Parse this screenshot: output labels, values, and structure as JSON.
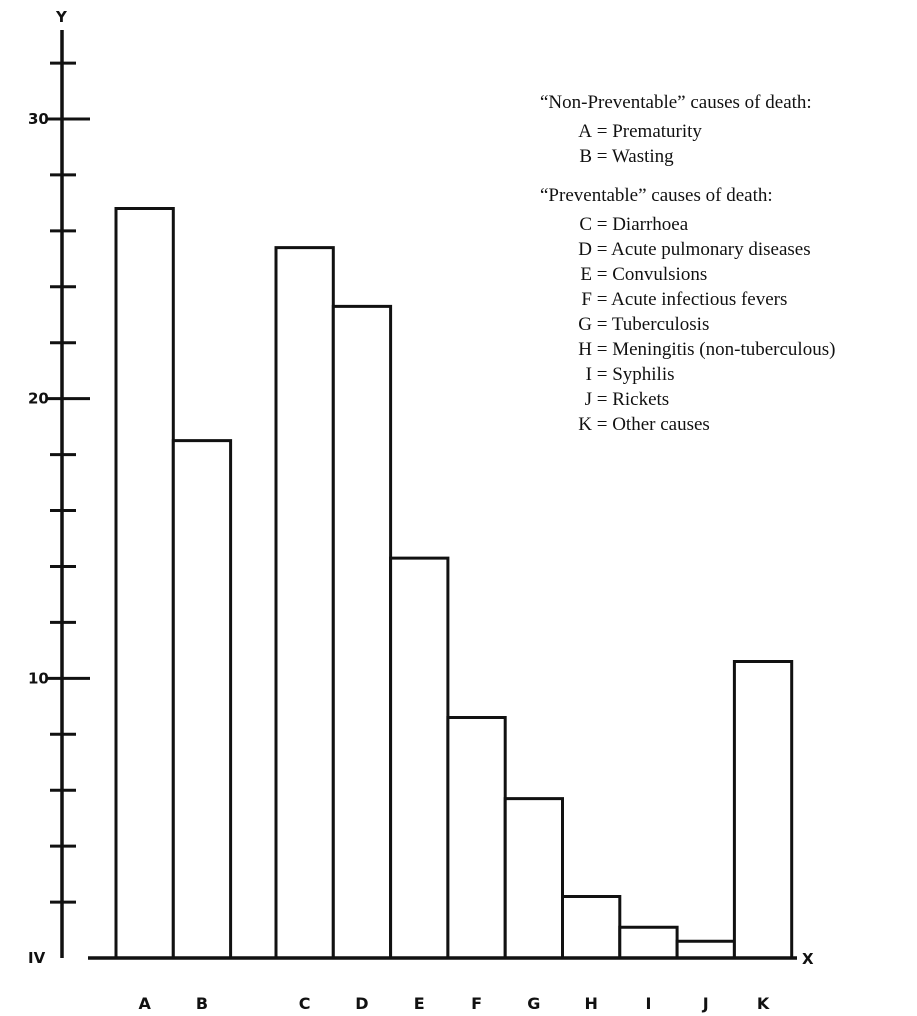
{
  "chart_data": {
    "type": "bar",
    "y_axis_letter": "Y",
    "x_axis_letter": "X",
    "origin_label": "IV",
    "ylim": [
      0,
      30
    ],
    "yticks_labeled": [
      10,
      20,
      30
    ],
    "categories": [
      "A",
      "B",
      "C",
      "D",
      "E",
      "F",
      "G",
      "H",
      "I",
      "J",
      "K"
    ],
    "values": [
      26.8,
      18.5,
      25.4,
      23.3,
      14.3,
      8.6,
      5.7,
      2.2,
      1.1,
      0.6,
      10.6
    ],
    "groups": [
      {
        "title": "“Non-Preventable” causes of death:",
        "categories": [
          "A",
          "B"
        ]
      },
      {
        "title": "“Preventable” causes of death:",
        "categories": [
          "C",
          "D",
          "E",
          "F",
          "G",
          "H",
          "I",
          "J",
          "K"
        ]
      }
    ],
    "legend": [
      {
        "code": "A",
        "text": "Prematurity"
      },
      {
        "code": "B",
        "text": "Wasting"
      },
      {
        "code": "C",
        "text": "Diarrhoea"
      },
      {
        "code": "D",
        "text": "Acute pulmonary diseases"
      },
      {
        "code": "E",
        "text": "Convulsions"
      },
      {
        "code": "F",
        "text": "Acute infectious fevers"
      },
      {
        "code": "G",
        "text": "Tuberculosis"
      },
      {
        "code": "H",
        "text": "Meningitis (non-tuberculous)"
      },
      {
        "code": "I",
        "text": "Syphilis"
      },
      {
        "code": "J",
        "text": "Rickets"
      },
      {
        "code": "K",
        "text": "Other causes"
      }
    ],
    "legend_placement": "top-right",
    "grid": false
  }
}
